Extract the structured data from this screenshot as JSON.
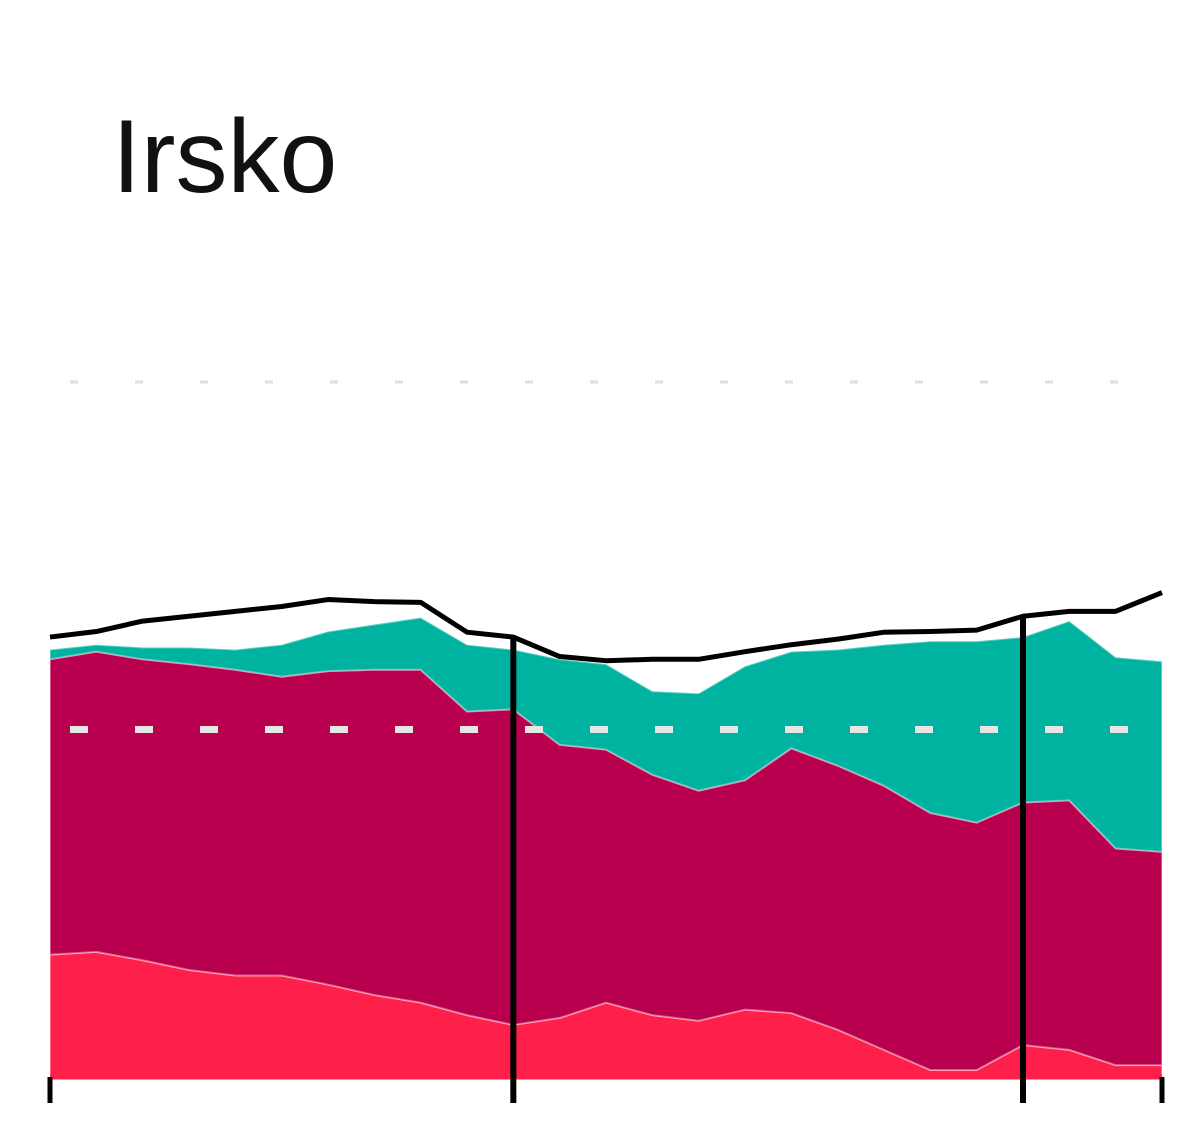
{
  "chart_data": {
    "type": "stacked-area",
    "title": "Irsko",
    "x": [
      0,
      1,
      2,
      3,
      4,
      5,
      6,
      7,
      8,
      9,
      10,
      11,
      12,
      13,
      14,
      15,
      16,
      17,
      18,
      19,
      20,
      21,
      22,
      23,
      24
    ],
    "xlim": [
      0,
      24
    ],
    "xticks": [
      0,
      10,
      21,
      24
    ],
    "ylim": [
      0,
      100
    ],
    "yticks": [
      50,
      100
    ],
    "grid": true,
    "markers": [
      10,
      21
    ],
    "series": [
      {
        "kind": "area",
        "color": "#ff1f4b",
        "values": [
          17.6,
          18.0,
          16.8,
          15.4,
          14.6,
          14.6,
          13.3,
          11.8,
          10.7,
          8.9,
          7.5,
          8.5,
          10.7,
          8.9,
          8.1,
          9.7,
          9.2,
          6.8,
          3.9,
          1.0,
          1.0,
          4.6,
          3.9,
          1.7,
          1.7
        ]
      },
      {
        "kind": "area",
        "color": "#b9004f",
        "values": [
          42.5,
          43.2,
          43.3,
          44.0,
          44.0,
          43.0,
          45.1,
          46.8,
          47.9,
          43.7,
          45.4,
          39.3,
          36.4,
          34.6,
          33.1,
          33.0,
          38.1,
          38.0,
          38.0,
          37.0,
          35.6,
          34.9,
          35.9,
          31.2,
          30.7
        ]
      },
      {
        "kind": "area",
        "color": "#00b3a0",
        "values": [
          1.4,
          1.0,
          1.7,
          2.4,
          2.9,
          4.6,
          5.7,
          6.5,
          7.5,
          9.6,
          8.6,
          12.3,
          12.3,
          12.0,
          14.0,
          16.4,
          13.9,
          16.7,
          20.3,
          24.7,
          26.1,
          23.8,
          25.8,
          27.5,
          27.4
        ]
      },
      {
        "kind": "line",
        "color": "#000000",
        "values": [
          63.3,
          64.1,
          65.6,
          66.3,
          67.0,
          67.7,
          68.7,
          68.4,
          68.3,
          64.0,
          63.3,
          60.5,
          59.9,
          60.1,
          60.1,
          61.2,
          62.2,
          63.0,
          64.0,
          64.1,
          64.3,
          66.3,
          67.0,
          67.0,
          69.7
        ]
      }
    ]
  }
}
